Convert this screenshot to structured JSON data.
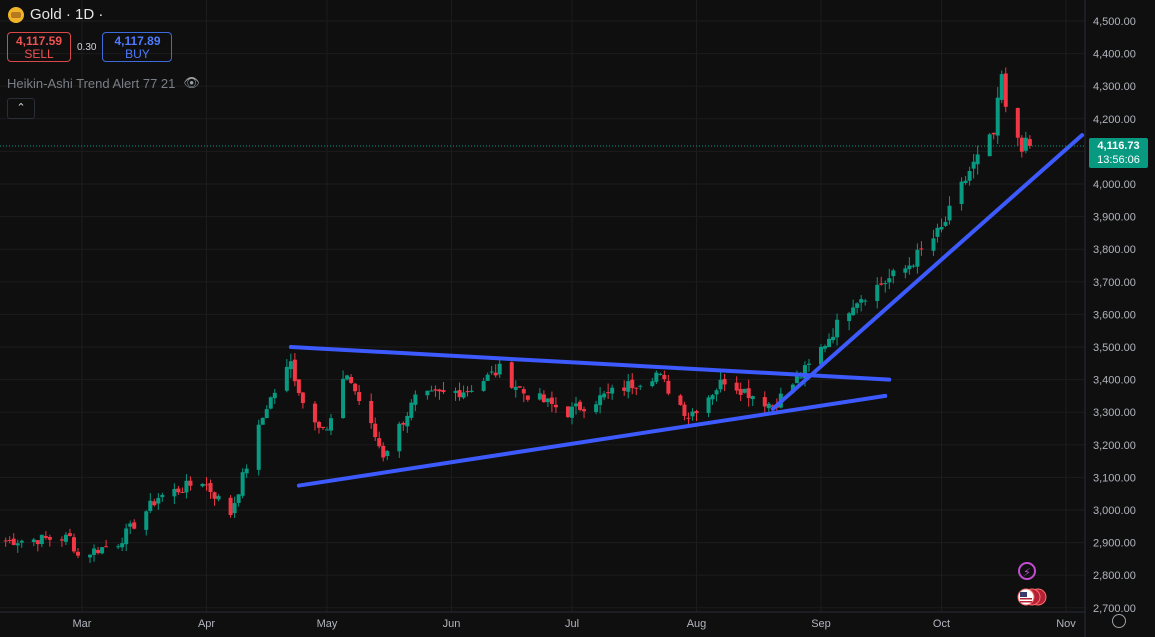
{
  "header": {
    "symbol_label": "Gold · 1D ·"
  },
  "trade": {
    "sell_price": "4,117.59",
    "sell_label": "SELL",
    "spread": "0.30",
    "buy_price": "4,117.89",
    "buy_label": "BUY"
  },
  "indicator": {
    "label": "Heikin-Ashi Trend Alert 77 21"
  },
  "controls": {
    "collapse_icon": "chevron-up-icon",
    "visibility_icon": "eye-off-icon",
    "settings_icon": "gear-icon"
  },
  "price_label": {
    "price": "4,116.73",
    "countdown": "13:56:06"
  },
  "colors": {
    "up": "#089981",
    "down": "#f23645",
    "trendline": "#3d5afe",
    "background": "#0f0f0f",
    "grid": "#1c1c1c",
    "axis_text": "#b2b5be"
  },
  "chart_data": {
    "type": "candlestick",
    "title": "Gold · 1D",
    "ylim": [
      2650,
      4550
    ],
    "y_ticks": [
      "4,500.00",
      "4,400.00",
      "4,300.00",
      "4,200.00",
      "4,100.00",
      "4,000.00",
      "3,900.00",
      "3,800.00",
      "3,700.00",
      "3,600.00",
      "3,500.00",
      "3,400.00",
      "3,300.00",
      "3,200.00",
      "3,100.00",
      "3,000.00",
      "2,900.00",
      "2,800.00",
      "2,700.00"
    ],
    "x_ticks": [
      "Mar",
      "Apr",
      "May",
      "Jun",
      "Jul",
      "Aug",
      "Sep",
      "Oct",
      "Nov"
    ],
    "current_price": 4116.73,
    "anchor_points": [
      {
        "date": "2025-02-10",
        "close": 2905
      },
      {
        "date": "2025-02-26",
        "close": 2915
      },
      {
        "date": "2025-02-28",
        "close": 2860
      },
      {
        "date": "2025-03-10",
        "close": 2900
      },
      {
        "date": "2025-03-20",
        "close": 3040
      },
      {
        "date": "2025-03-31",
        "close": 3090
      },
      {
        "date": "2025-04-07",
        "close": 2990
      },
      {
        "date": "2025-04-16",
        "close": 3320
      },
      {
        "date": "2025-04-22",
        "close": 3450
      },
      {
        "date": "2025-04-25",
        "close": 3330
      },
      {
        "date": "2025-05-01",
        "close": 3240
      },
      {
        "date": "2025-05-06",
        "close": 3420
      },
      {
        "date": "2025-05-15",
        "close": 3170
      },
      {
        "date": "2025-05-23",
        "close": 3340
      },
      {
        "date": "2025-06-05",
        "close": 3370
      },
      {
        "date": "2025-06-13",
        "close": 3430
      },
      {
        "date": "2025-06-19",
        "close": 3360
      },
      {
        "date": "2025-06-30",
        "close": 3300
      },
      {
        "date": "2025-07-22",
        "close": 3420
      },
      {
        "date": "2025-07-30",
        "close": 3290
      },
      {
        "date": "2025-08-08",
        "close": 3400
      },
      {
        "date": "2025-08-20",
        "close": 3320
      },
      {
        "date": "2025-08-29",
        "close": 3440
      },
      {
        "date": "2025-09-09",
        "close": 3640
      },
      {
        "date": "2025-09-22",
        "close": 3740
      },
      {
        "date": "2025-10-01",
        "close": 3860
      },
      {
        "date": "2025-10-08",
        "close": 4040
      },
      {
        "date": "2025-10-14",
        "close": 4150
      },
      {
        "date": "2025-10-16",
        "close": 4330
      },
      {
        "date": "2025-10-17",
        "close": 4220
      },
      {
        "date": "2025-10-21",
        "close": 4120
      },
      {
        "date": "2025-10-23",
        "close": 4117
      }
    ],
    "trendlines": [
      {
        "name": "upper",
        "from": {
          "date": "2025-04-22",
          "price": 3500
        },
        "to": {
          "date": "2025-09-18",
          "price": 3400
        }
      },
      {
        "name": "lower",
        "from": {
          "date": "2025-04-24",
          "price": 3075
        },
        "to": {
          "date": "2025-09-17",
          "price": 3350
        }
      },
      {
        "name": "breakout",
        "from": {
          "date": "2025-08-20",
          "price": 3310
        },
        "to": {
          "date": "2025-11-05",
          "price": 4150
        }
      }
    ],
    "grid": true
  }
}
